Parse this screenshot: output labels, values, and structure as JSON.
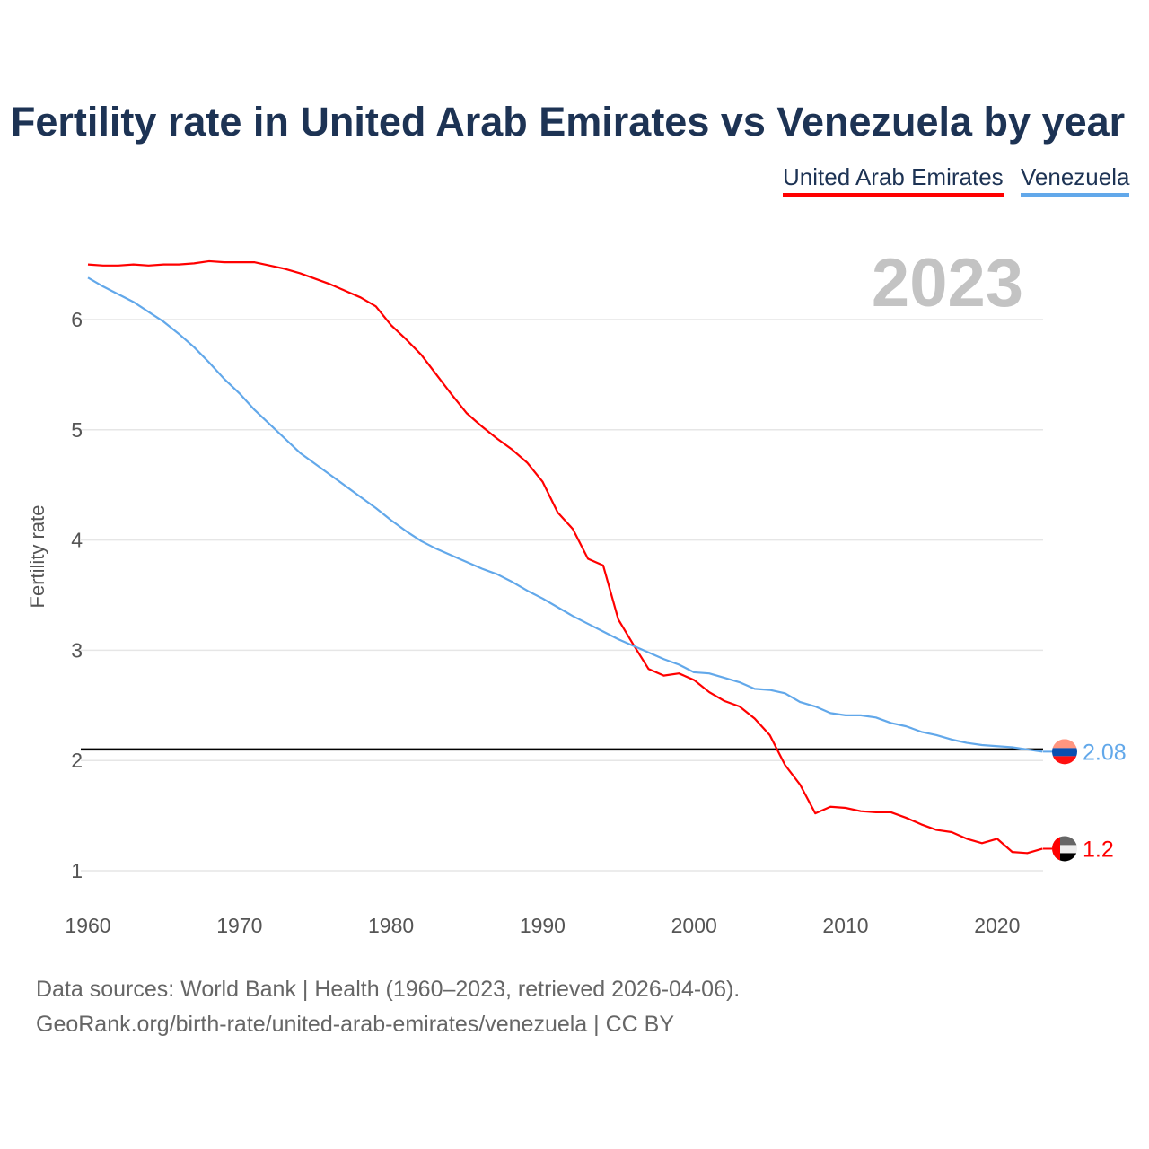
{
  "chart_data": {
    "type": "line",
    "title": "Fertility rate in United Arab Emirates vs Venezuela by year",
    "ylabel": "Fertility rate",
    "xlabel": "",
    "year_label": "2023",
    "xlim": [
      1960,
      2023
    ],
    "ylim": [
      0.7,
      6.7
    ],
    "x_ticks": [
      "1960",
      "1970",
      "1980",
      "1990",
      "2000",
      "2010",
      "2020"
    ],
    "y_ticks": [
      "1",
      "2",
      "3",
      "4",
      "5",
      "6"
    ],
    "reference_line": 2.1,
    "legend_position": "top-right",
    "x": [
      1960,
      1961,
      1962,
      1963,
      1964,
      1965,
      1966,
      1967,
      1968,
      1969,
      1970,
      1971,
      1972,
      1973,
      1974,
      1975,
      1976,
      1977,
      1978,
      1979,
      1980,
      1981,
      1982,
      1983,
      1984,
      1985,
      1986,
      1987,
      1988,
      1989,
      1990,
      1991,
      1992,
      1993,
      1994,
      1995,
      1996,
      1997,
      1998,
      1999,
      2000,
      2001,
      2002,
      2003,
      2004,
      2005,
      2006,
      2007,
      2008,
      2009,
      2010,
      2011,
      2012,
      2013,
      2014,
      2015,
      2016,
      2017,
      2018,
      2019,
      2020,
      2021,
      2022,
      2023
    ],
    "series": [
      {
        "name": "United Arab Emirates",
        "color": "#ff0000",
        "end_label": "1.2",
        "values": [
          6.5,
          6.49,
          6.49,
          6.5,
          6.49,
          6.5,
          6.5,
          6.51,
          6.53,
          6.52,
          6.52,
          6.52,
          6.49,
          6.46,
          6.42,
          6.37,
          6.32,
          6.26,
          6.2,
          6.12,
          5.95,
          5.82,
          5.68,
          5.5,
          5.32,
          5.15,
          5.03,
          4.92,
          4.82,
          4.7,
          4.53,
          4.25,
          4.1,
          3.83,
          3.77,
          3.28,
          3.05,
          2.83,
          2.77,
          2.79,
          2.73,
          2.62,
          2.54,
          2.49,
          2.38,
          2.23,
          1.96,
          1.78,
          1.52,
          1.58,
          1.57,
          1.54,
          1.53,
          1.53,
          1.48,
          1.42,
          1.37,
          1.35,
          1.29,
          1.25,
          1.29,
          1.17,
          1.16,
          1.2
        ]
      },
      {
        "name": "Venezuela",
        "color": "#62a8ea",
        "end_label": "2.08",
        "values": [
          6.38,
          6.3,
          6.23,
          6.16,
          6.07,
          5.98,
          5.87,
          5.75,
          5.61,
          5.46,
          5.33,
          5.18,
          5.05,
          4.92,
          4.79,
          4.69,
          4.59,
          4.49,
          4.39,
          4.29,
          4.18,
          4.08,
          3.99,
          3.92,
          3.86,
          3.8,
          3.74,
          3.69,
          3.62,
          3.54,
          3.47,
          3.39,
          3.31,
          3.24,
          3.17,
          3.1,
          3.04,
          2.98,
          2.92,
          2.87,
          2.8,
          2.79,
          2.75,
          2.71,
          2.65,
          2.64,
          2.61,
          2.53,
          2.49,
          2.43,
          2.41,
          2.41,
          2.39,
          2.34,
          2.31,
          2.26,
          2.23,
          2.19,
          2.16,
          2.14,
          2.13,
          2.12,
          2.1,
          2.08
        ]
      }
    ]
  },
  "legend": {
    "uae": "United Arab Emirates",
    "venezuela": "Venezuela"
  },
  "footer": {
    "line1": "Data sources: World Bank | Health (1960–2023, retrieved 2026-04-06).",
    "line2": "GeoRank.org/birth-rate/united-arab-emirates/venezuela | CC BY"
  }
}
